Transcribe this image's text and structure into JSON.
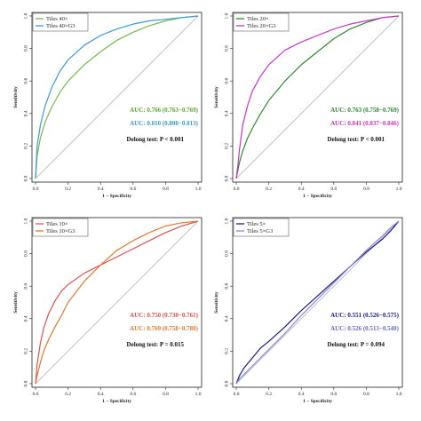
{
  "chart_data": [
    {
      "type": "line",
      "xlabel": "1 − Specificity",
      "ylabel": "Sensitivity",
      "xlim": [
        0,
        1
      ],
      "ylim": [
        0,
        1
      ],
      "ticks": [
        "0.0",
        "0.2",
        "0.4",
        "0.6",
        "0.8",
        "1.0"
      ],
      "grid": false,
      "legend_position": "top-left",
      "reference_line": true,
      "series": [
        {
          "name": "Tiles 40×",
          "color": "#7ab84a",
          "x": [
            0,
            0.01,
            0.03,
            0.06,
            0.1,
            0.15,
            0.2,
            0.3,
            0.4,
            0.5,
            0.6,
            0.7,
            0.8,
            0.9,
            1.0
          ],
          "y": [
            0,
            0.14,
            0.25,
            0.35,
            0.44,
            0.53,
            0.6,
            0.7,
            0.78,
            0.85,
            0.9,
            0.94,
            0.97,
            0.99,
            1.0
          ]
        },
        {
          "name": "Tiles 40×G3",
          "color": "#3a9bd5",
          "x": [
            0,
            0.01,
            0.03,
            0.06,
            0.1,
            0.15,
            0.2,
            0.3,
            0.4,
            0.5,
            0.6,
            0.7,
            0.8,
            0.9,
            1.0
          ],
          "y": [
            0,
            0.2,
            0.33,
            0.45,
            0.56,
            0.66,
            0.73,
            0.82,
            0.88,
            0.92,
            0.95,
            0.97,
            0.98,
            0.99,
            1.0
          ]
        }
      ],
      "auc_labels": [
        {
          "text": "AUC: 0.766 (0.763−0.769)",
          "color": "#5aa832"
        },
        {
          "text": "AUC: 0.810 (0.808−0.813)",
          "color": "#3a9bd5"
        }
      ],
      "test_label": "Delong test: P < 0.001"
    },
    {
      "type": "line",
      "xlabel": "1 − Specificity",
      "ylabel": "Sensitivity",
      "xlim": [
        0,
        1
      ],
      "ylim": [
        0,
        1
      ],
      "ticks": [
        "0.0",
        "0.2",
        "0.4",
        "0.6",
        "0.8",
        "1.0"
      ],
      "grid": false,
      "legend_position": "top-left",
      "reference_line": true,
      "series": [
        {
          "name": "Tiles 20×",
          "color": "#2e8b2e",
          "x": [
            0,
            0.01,
            0.02,
            0.04,
            0.07,
            0.1,
            0.15,
            0.2,
            0.3,
            0.4,
            0.5,
            0.6,
            0.7,
            0.8,
            0.9,
            1.0
          ],
          "y": [
            0,
            0.05,
            0.1,
            0.17,
            0.25,
            0.31,
            0.4,
            0.48,
            0.6,
            0.7,
            0.78,
            0.86,
            0.92,
            0.96,
            0.99,
            1.0
          ]
        },
        {
          "name": "Tiles 20×G3",
          "color": "#cc33cc",
          "x": [
            0,
            0.01,
            0.02,
            0.04,
            0.07,
            0.1,
            0.15,
            0.2,
            0.3,
            0.4,
            0.5,
            0.6,
            0.7,
            0.8,
            0.9,
            1.0
          ],
          "y": [
            0,
            0.08,
            0.18,
            0.33,
            0.45,
            0.54,
            0.63,
            0.7,
            0.79,
            0.84,
            0.88,
            0.92,
            0.95,
            0.97,
            0.99,
            1.0
          ]
        }
      ],
      "auc_labels": [
        {
          "text": "AUC: 0.763 (0.758−0.769)",
          "color": "#2e8b2e"
        },
        {
          "text": "AUC: 0.841 (0.837−0.846)",
          "color": "#cc33cc"
        }
      ],
      "test_label": "Delong test: P < 0.001"
    },
    {
      "type": "line",
      "xlabel": "1 − Specificity",
      "ylabel": "Sensitivity",
      "xlim": [
        0,
        1
      ],
      "ylim": [
        0,
        1
      ],
      "ticks": [
        "0.0",
        "0.2",
        "0.4",
        "0.6",
        "0.8",
        "1.0"
      ],
      "grid": false,
      "legend_position": "top-left",
      "reference_line": true,
      "series": [
        {
          "name": "Tiles 10×",
          "color": "#e05050",
          "x": [
            0,
            0.01,
            0.03,
            0.05,
            0.08,
            0.12,
            0.16,
            0.2,
            0.3,
            0.4,
            0.5,
            0.6,
            0.7,
            0.8,
            0.9,
            1.0
          ],
          "y": [
            0,
            0.12,
            0.25,
            0.34,
            0.43,
            0.51,
            0.57,
            0.61,
            0.68,
            0.73,
            0.78,
            0.83,
            0.88,
            0.93,
            0.97,
            1.0
          ]
        },
        {
          "name": "Tiles 10×G3",
          "color": "#e07a30",
          "x": [
            0,
            0.01,
            0.03,
            0.05,
            0.08,
            0.12,
            0.16,
            0.2,
            0.3,
            0.4,
            0.5,
            0.6,
            0.7,
            0.8,
            0.9,
            1.0
          ],
          "y": [
            0,
            0.05,
            0.13,
            0.2,
            0.27,
            0.35,
            0.42,
            0.5,
            0.63,
            0.73,
            0.82,
            0.88,
            0.93,
            0.97,
            0.99,
            1.0
          ]
        }
      ],
      "auc_labels": [
        {
          "text": "AUC: 0.750 (0.738−0.761)",
          "color": "#e05050"
        },
        {
          "text": "AUC: 0.769 (0.758−0.780)",
          "color": "#e07a30"
        }
      ],
      "test_label": "Delong test: P = 0.015"
    },
    {
      "type": "line",
      "xlabel": "1 − Specificity",
      "ylabel": "Sensitivity",
      "xlim": [
        0,
        1
      ],
      "ylim": [
        0,
        1
      ],
      "ticks": [
        "0.0",
        "0.2",
        "0.4",
        "0.6",
        "0.8",
        "1.0"
      ],
      "grid": false,
      "legend_position": "top-left",
      "reference_line": true,
      "series": [
        {
          "name": "Tiles 5×",
          "color": "#1a1a8c",
          "x": [
            0,
            0.02,
            0.05,
            0.1,
            0.15,
            0.2,
            0.3,
            0.4,
            0.5,
            0.6,
            0.7,
            0.8,
            0.9,
            0.95,
            1.0
          ],
          "y": [
            0,
            0.05,
            0.1,
            0.16,
            0.22,
            0.26,
            0.35,
            0.45,
            0.54,
            0.63,
            0.72,
            0.81,
            0.89,
            0.94,
            1.0
          ]
        },
        {
          "name": "Tiles 5×G3",
          "color": "#8888dd",
          "x": [
            0,
            0.02,
            0.05,
            0.1,
            0.15,
            0.2,
            0.3,
            0.4,
            0.5,
            0.6,
            0.7,
            0.8,
            0.9,
            0.95,
            1.0
          ],
          "y": [
            0,
            0.03,
            0.06,
            0.11,
            0.16,
            0.21,
            0.31,
            0.42,
            0.52,
            0.62,
            0.72,
            0.82,
            0.91,
            0.96,
            1.0
          ]
        }
      ],
      "auc_labels": [
        {
          "text": "AUC: 0.551 (0.526−0.575)",
          "color": "#1a1a8c"
        },
        {
          "text": "AUC: 0.526 (0.513−0.540)",
          "color": "#6a6acc"
        }
      ],
      "test_label": "Delong test: P = 0.094"
    }
  ]
}
